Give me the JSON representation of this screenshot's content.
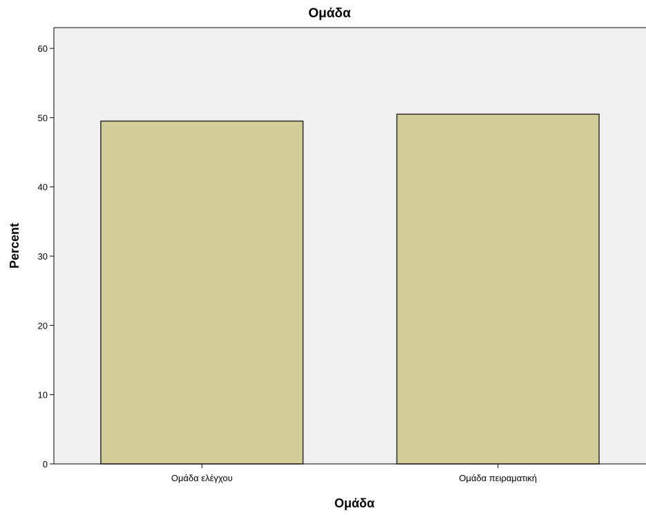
{
  "chart_data": {
    "type": "bar",
    "title": "Ομάδα",
    "xlabel": "Ομάδα",
    "ylabel": "Percent",
    "categories": [
      "Ομάδα ελέγχου",
      "Ομάδα πειραματική"
    ],
    "values": [
      49.5,
      50.5
    ],
    "ylim": [
      0,
      63
    ],
    "yticks": [
      "0",
      "10",
      "20",
      "30",
      "40",
      "50",
      "60"
    ],
    "grid": false,
    "colors": {
      "bar_fill": "#d3ce98",
      "bar_stroke": "#2b2b2b",
      "plot_background": "#f0f0f0",
      "axis": "#000000"
    }
  }
}
